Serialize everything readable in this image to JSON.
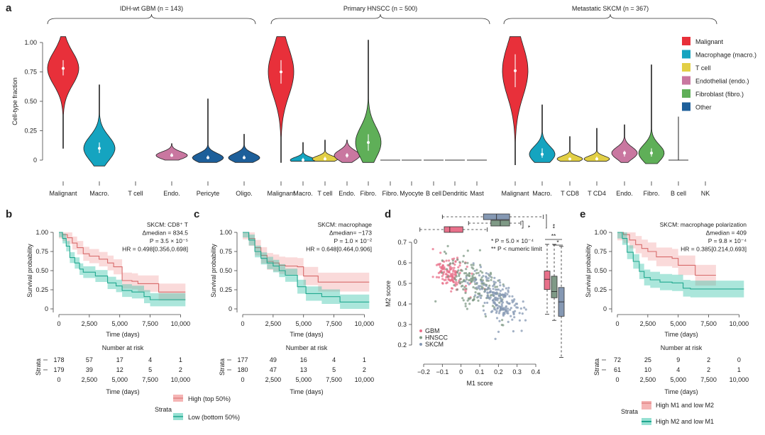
{
  "colors": {
    "malignant": "#e8303a",
    "macrophage": "#15a4c0",
    "tcell": "#e2cf45",
    "endothelial": "#c977a0",
    "fibroblast": "#5faf58",
    "other": "#1d5f9a",
    "high": "#f3a3a3",
    "low": "#2cc1a5",
    "gbm": "#e8708a",
    "hnscc": "#7f9a86",
    "skcm": "#8598b3"
  },
  "chart_data": [
    {
      "id": "a",
      "type": "violin",
      "panel_label": "a",
      "ylabel": "Cell-type fraction",
      "ylim": [
        0,
        1.0
      ],
      "yticks": [
        "0",
        "0.25",
        "0.50",
        "0.75",
        "1.00"
      ],
      "ytick_values": [
        0,
        0.25,
        0.5,
        0.75,
        1.0
      ],
      "legend": {
        "position": "right",
        "items": [
          {
            "label": "Malignant",
            "color_key": "malignant"
          },
          {
            "label": "Macrophage (macro.)",
            "color_key": "macrophage"
          },
          {
            "label": "T cell",
            "color_key": "tcell"
          },
          {
            "label": "Endothelial (endo.)",
            "color_key": "endothelial"
          },
          {
            "label": "Fibroblast (fibro.)",
            "color_key": "fibroblast"
          },
          {
            "label": "Other",
            "color_key": "other"
          }
        ]
      },
      "groups": [
        {
          "title": "IDH-wt GBM (n = 143)",
          "categories": [
            {
              "label": "Malignant",
              "color_key": "malignant",
              "median": 0.78,
              "max": 1.05,
              "min": 0.1,
              "iqr": [
                0.72,
                0.85
              ],
              "bulk": [
                0.55,
                1.0
              ]
            },
            {
              "label": "Macro.",
              "color_key": "macrophage",
              "median": 0.1,
              "max": 0.64,
              "min": -0.05,
              "iqr": [
                0.06,
                0.15
              ],
              "bulk": [
                -0.03,
                0.3
              ]
            },
            {
              "label": "T cell",
              "color_key": null,
              "median": null
            },
            {
              "label": "Endo.",
              "color_key": "endothelial",
              "median": 0.04,
              "max": 0.14,
              "min": 0.0,
              "iqr": [
                0.03,
                0.06
              ],
              "bulk": [
                0.0,
                0.1
              ]
            },
            {
              "label": "Pericyte",
              "color_key": "other",
              "median": 0.02,
              "max": 0.52,
              "min": -0.02,
              "iqr": [
                0.01,
                0.04
              ],
              "bulk": [
                -0.02,
                0.1
              ]
            },
            {
              "label": "Oligo.",
              "color_key": "other",
              "median": 0.02,
              "max": 0.22,
              "min": -0.02,
              "iqr": [
                0.01,
                0.04
              ],
              "bulk": [
                -0.02,
                0.1
              ]
            }
          ]
        },
        {
          "title": "Primary HNSCC (n = 500)",
          "categories": [
            {
              "label": "Malignant",
              "color_key": "malignant",
              "median": 0.75,
              "max": 1.05,
              "min": -0.02,
              "iqr": [
                0.65,
                0.85
              ],
              "bulk": [
                0.35,
                1.0
              ]
            },
            {
              "label": "Macro.",
              "color_key": "macrophage",
              "median": 0.0,
              "max": 0.15,
              "min": -0.01,
              "iqr": [
                0.0,
                0.02
              ],
              "bulk": [
                -0.01,
                0.05
              ]
            },
            {
              "label": "T cell",
              "color_key": "tcell",
              "median": 0.01,
              "max": 0.17,
              "min": -0.01,
              "iqr": [
                0.0,
                0.03
              ],
              "bulk": [
                -0.01,
                0.06
              ]
            },
            {
              "label": "Endo.",
              "color_key": "endothelial",
              "median": 0.04,
              "max": 0.17,
              "min": -0.02,
              "iqr": [
                0.02,
                0.06
              ],
              "bulk": [
                -0.02,
                0.12
              ]
            },
            {
              "label": "Fibro.",
              "color_key": "fibroblast",
              "median": 0.15,
              "max": 1.02,
              "min": -0.02,
              "iqr": [
                0.08,
                0.22
              ],
              "bulk": [
                -0.02,
                0.4
              ]
            },
            {
              "label": "Fibro.",
              "color_key": "other",
              "median": 0.0,
              "flat": true
            },
            {
              "label": "Myocyte",
              "color_key": "other",
              "median": 0.0,
              "flat": true
            },
            {
              "label": "B cell",
              "color_key": "other",
              "median": 0.0,
              "flat": true
            },
            {
              "label": "Dendritic",
              "color_key": "other",
              "median": 0.0,
              "flat": true
            },
            {
              "label": "Mast",
              "color_key": "other",
              "median": 0.0,
              "flat": true
            }
          ]
        },
        {
          "title": "Metastatic SKCM (n = 367)",
          "categories": [
            {
              "label": "Malignant",
              "color_key": "malignant",
              "median": 0.76,
              "max": 1.05,
              "min": -0.04,
              "iqr": [
                0.62,
                0.9
              ],
              "bulk": [
                0.3,
                1.0
              ]
            },
            {
              "label": "Macro.",
              "color_key": "macrophage",
              "median": 0.05,
              "max": 0.47,
              "min": -0.02,
              "iqr": [
                0.02,
                0.1
              ],
              "bulk": [
                -0.02,
                0.2
              ]
            },
            {
              "label": "T CD8",
              "color_key": "tcell",
              "median": 0.01,
              "max": 0.2,
              "min": -0.01,
              "iqr": [
                0.0,
                0.02
              ],
              "bulk": [
                -0.01,
                0.06
              ]
            },
            {
              "label": "T CD4",
              "color_key": "tcell",
              "median": 0.01,
              "max": 0.27,
              "min": -0.01,
              "iqr": [
                0.0,
                0.03
              ],
              "bulk": [
                -0.01,
                0.07
              ]
            },
            {
              "label": "Endo.",
              "color_key": "endothelial",
              "median": 0.06,
              "max": 0.3,
              "min": -0.02,
              "iqr": [
                0.03,
                0.08
              ],
              "bulk": [
                -0.02,
                0.14
              ]
            },
            {
              "label": "Fibro.",
              "color_key": "fibroblast",
              "median": 0.06,
              "max": 0.81,
              "min": -0.03,
              "iqr": [
                0.03,
                0.1
              ],
              "bulk": [
                -0.03,
                0.2
              ]
            },
            {
              "label": "B cell",
              "color_key": "other",
              "median": 0.0,
              "max": 0.37,
              "min": 0.0,
              "flat": true
            },
            {
              "label": "NK",
              "color_key": null,
              "median": null
            }
          ]
        }
      ]
    },
    {
      "id": "b",
      "type": "line",
      "panel_label": "b",
      "subtype": "kaplan-meier",
      "annotation": [
        "SKCM: CD8⁺ T",
        "Δmedian = 834.5",
        "P = 3.5 × 10⁻⁵",
        "HR = 0.498[0.356,0.698]"
      ],
      "xlabel": "Time (days)",
      "ylabel": "Survival probability",
      "xlim": [
        0,
        10500
      ],
      "ylim": [
        0,
        1
      ],
      "xticks": [
        "0",
        "2,500",
        "5,000",
        "7,500",
        "10,000"
      ],
      "yticks": [
        "0",
        "0.25",
        "0.50",
        "0.75",
        "1.00"
      ],
      "series": [
        {
          "name": "High (top 50%)",
          "color_key": "high",
          "x": [
            0,
            300,
            700,
            1100,
            1500,
            2000,
            2500,
            3300,
            4000,
            4500,
            5200,
            6000,
            6500,
            8200,
            10400
          ],
          "y": [
            1.0,
            0.97,
            0.93,
            0.86,
            0.8,
            0.72,
            0.69,
            0.65,
            0.6,
            0.55,
            0.37,
            0.36,
            0.33,
            0.22,
            0.22
          ],
          "ci_half": 0.1
        },
        {
          "name": "Low (bottom 50%)",
          "color_key": "low",
          "x": [
            0,
            300,
            600,
            900,
            1300,
            1700,
            2000,
            3000,
            4000,
            4700,
            5200,
            6000,
            7000,
            7500,
            10400
          ],
          "y": [
            1.0,
            0.92,
            0.82,
            0.67,
            0.6,
            0.52,
            0.48,
            0.43,
            0.34,
            0.3,
            0.24,
            0.22,
            0.16,
            0.12,
            0.12
          ],
          "ci_half": 0.07
        }
      ],
      "risk_table": {
        "title": "Number at risk",
        "ylabel": "Strata",
        "xlabel": "Time (days)",
        "rows": [
          [
            "178",
            "57",
            "17",
            "4",
            "1"
          ],
          [
            "179",
            "39",
            "12",
            "5",
            "2"
          ]
        ],
        "times": [
          "0",
          "2,500",
          "5,000",
          "7,500",
          "10,000"
        ]
      },
      "legend": {
        "title": "Strata",
        "items": [
          "High (top 50%)",
          "Low (bottom 50%)"
        ]
      }
    },
    {
      "id": "c",
      "type": "line",
      "panel_label": "c",
      "subtype": "kaplan-meier",
      "annotation": [
        "SKCM: macrophage",
        "Δmedian= −173",
        "P = 1.0 × 10⁻²",
        "HR = 0.648[0.464,0.906]"
      ],
      "xlabel": "Time (days)",
      "ylabel": "Survival probability",
      "xlim": [
        0,
        10500
      ],
      "ylim": [
        0,
        1
      ],
      "xticks": [
        "0",
        "2,500",
        "5,000",
        "7,500",
        "10,000"
      ],
      "yticks": [
        "0",
        "0.25",
        "0.50",
        "0.75",
        "1.00"
      ],
      "series": [
        {
          "name": "High (top 50%)",
          "color_key": "high",
          "x": [
            0,
            500,
            1000,
            1500,
            2000,
            2500,
            3000,
            3500,
            4500,
            5000,
            6200,
            10400
          ],
          "y": [
            1.0,
            0.92,
            0.8,
            0.7,
            0.62,
            0.6,
            0.57,
            0.56,
            0.55,
            0.43,
            0.35,
            0.35
          ],
          "ci_half": 0.12
        },
        {
          "name": "Low (bottom 50%)",
          "color_key": "low",
          "x": [
            0,
            500,
            1000,
            1500,
            2000,
            2500,
            3000,
            3500,
            4500,
            5200,
            6500,
            8000,
            10400
          ],
          "y": [
            1.0,
            0.9,
            0.75,
            0.66,
            0.6,
            0.56,
            0.5,
            0.44,
            0.29,
            0.2,
            0.16,
            0.09,
            0.09
          ],
          "ci_half": 0.08
        }
      ],
      "risk_table": {
        "title": "Number at risk",
        "ylabel": "Strata",
        "xlabel": "Time (days)",
        "rows": [
          [
            "177",
            "49",
            "16",
            "4",
            "1"
          ],
          [
            "180",
            "47",
            "13",
            "5",
            "2"
          ]
        ],
        "times": [
          "0",
          "2,500",
          "5,000",
          "7,500",
          "10,000"
        ]
      }
    },
    {
      "id": "d",
      "type": "scatter",
      "panel_label": "d",
      "xlabel": "M1 score",
      "ylabel": "M2 score",
      "xlim": [
        -0.2,
        0.4
      ],
      "ylim": [
        0.2,
        0.7
      ],
      "xticks": [
        "−0.2",
        "−0.1",
        "0",
        "0.1",
        "0.2",
        "0.3",
        "0.4"
      ],
      "yticks": [
        "0.2",
        "0.3",
        "0.4",
        "0.5",
        "0.6",
        "0.7"
      ],
      "corner_label": "0",
      "legend": {
        "position": "bottom-left",
        "items": [
          "GBM",
          "HNSCC",
          "SKCM"
        ]
      },
      "annotations": [
        "* P = 5.0 × 10⁻⁴",
        "** P < numeric limit"
      ],
      "groups": [
        {
          "name": "GBM",
          "color_key": "gbm",
          "center": [
            -0.06,
            0.55
          ],
          "spread": [
            0.06,
            0.06
          ],
          "n": 140
        },
        {
          "name": "HNSCC",
          "color_key": "hnscc",
          "center": [
            0.08,
            0.5
          ],
          "spread": [
            0.1,
            0.08
          ],
          "n": 160
        },
        {
          "name": "SKCM",
          "color_key": "skcm",
          "center": [
            0.2,
            0.42
          ],
          "spread": [
            0.09,
            0.07
          ],
          "n": 200
        }
      ],
      "top_boxplots": [
        {
          "name": "SKCM",
          "color_key": "skcm",
          "whisker": [
            -0.1,
            0.44
          ],
          "box": [
            0.12,
            0.26
          ],
          "median": 0.19
        },
        {
          "name": "HNSCC",
          "color_key": "hnscc",
          "whisker": [
            0.04,
            0.32
          ],
          "box": [
            0.16,
            0.26
          ],
          "median": 0.21
        },
        {
          "name": "GBM",
          "color_key": "gbm",
          "whisker": [
            -0.22,
            0.14
          ],
          "box": [
            -0.09,
            0.01
          ],
          "median": -0.06
        }
      ],
      "right_boxplots": [
        {
          "name": "GBM",
          "color_key": "gbm",
          "whisker": [
            0.35,
            0.69
          ],
          "box": [
            0.47,
            0.56
          ],
          "median": 0.52
        },
        {
          "name": "HNSCC",
          "color_key": "hnscc",
          "whisker": [
            0.32,
            0.69
          ],
          "box": [
            0.43,
            0.535
          ],
          "median": 0.46
        },
        {
          "name": "SKCM",
          "color_key": "skcm",
          "whisker": [
            0.14,
            0.68
          ],
          "box": [
            0.34,
            0.48
          ],
          "median": 0.41
        }
      ],
      "significance": {
        "top": [
          "**",
          "*",
          "*"
        ],
        "right": [
          "**",
          "*"
        ]
      }
    },
    {
      "id": "e",
      "type": "line",
      "panel_label": "e",
      "subtype": "kaplan-meier",
      "annotation": [
        "SKCM: macrophage polarization",
        "Δmedian = 409",
        "P = 9.8 × 10⁻⁴",
        "HR = 0.385[0.214,0.693]"
      ],
      "xlabel": "Time (days)",
      "ylabel": "Survival probability",
      "xlim": [
        0,
        10500
      ],
      "ylim": [
        0,
        1
      ],
      "xticks": [
        "0",
        "2,500",
        "5,000",
        "7,500",
        "10,000"
      ],
      "yticks": [
        "0",
        "0.25",
        "0.50",
        "0.75",
        "1.00"
      ],
      "series": [
        {
          "name": "High M1 and low M2",
          "color_key": "high",
          "x": [
            0,
            500,
            1000,
            1500,
            2000,
            2500,
            3200,
            4500,
            5000,
            5700,
            6400,
            8100
          ],
          "y": [
            1.0,
            0.97,
            0.9,
            0.84,
            0.79,
            0.75,
            0.68,
            0.66,
            0.57,
            0.57,
            0.44,
            0.44
          ],
          "ci_half": 0.14
        },
        {
          "name": "High M2 and low M1",
          "color_key": "low",
          "x": [
            0,
            400,
            800,
            1300,
            1800,
            2200,
            2700,
            3500,
            4500,
            5400,
            6000,
            10400
          ],
          "y": [
            1.0,
            0.92,
            0.74,
            0.62,
            0.49,
            0.41,
            0.38,
            0.35,
            0.34,
            0.27,
            0.26,
            0.26
          ],
          "ci_half": 0.1
        }
      ],
      "risk_table": {
        "title": "Number at risk",
        "ylabel": "Strata",
        "xlabel": "Time (days)",
        "rows": [
          [
            "72",
            "25",
            "9",
            "2",
            "0"
          ],
          [
            "61",
            "10",
            "4",
            "2",
            "1"
          ]
        ],
        "times": [
          "0",
          "2,500",
          "5,000",
          "7,500",
          "10,000"
        ]
      },
      "legend": {
        "title": "Strata",
        "items": [
          "High M1 and low M2",
          "High M2 and low M1"
        ]
      }
    }
  ]
}
